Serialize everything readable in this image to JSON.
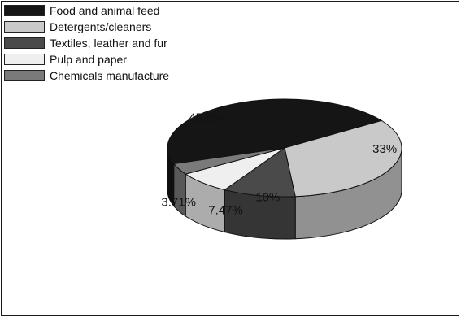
{
  "chart_data": {
    "type": "pie",
    "style": "3d",
    "legend_position": "top-left",
    "categories": [
      "Food and animal feed",
      "Detergents/cleaners",
      "Textiles, leather and fur",
      "Pulp and paper",
      "Chemicals manufacture"
    ],
    "values": [
      45.8,
      33,
      10,
      7.47,
      3.71
    ],
    "value_labels": [
      "45.8%",
      "33%",
      "10%",
      "7.47%",
      "3.71%"
    ],
    "colors": [
      "#151515",
      "#c9c9c9",
      "#4a4a4a",
      "#efefef",
      "#7a7a7a"
    ]
  }
}
